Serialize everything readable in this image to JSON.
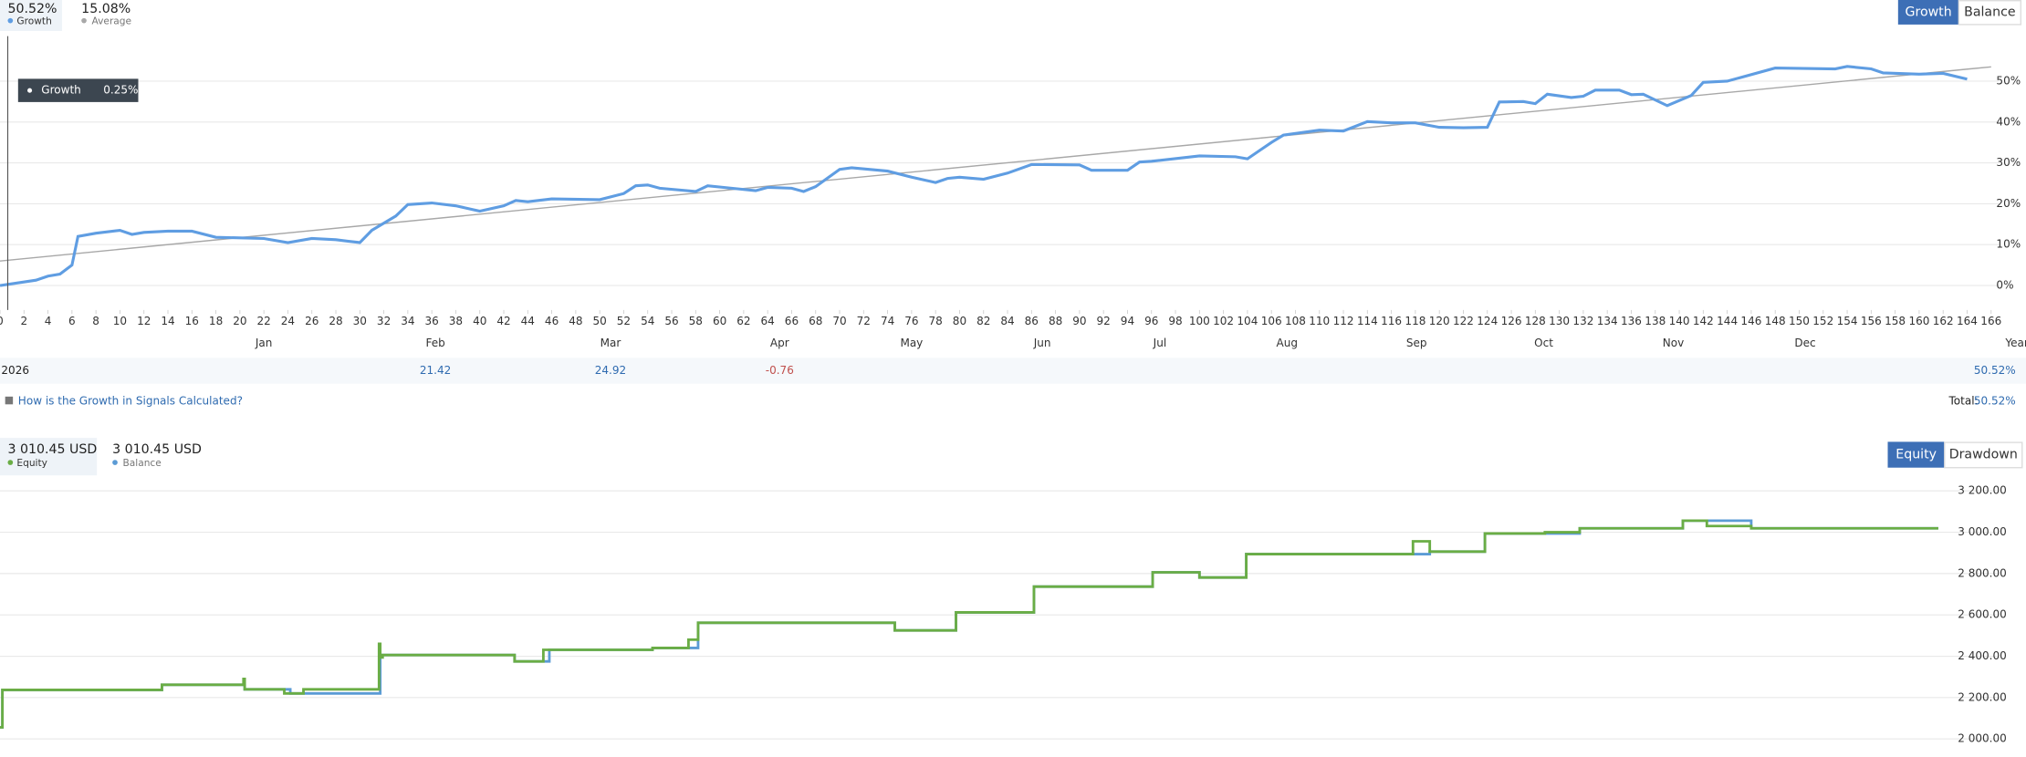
{
  "ui": {
    "growth_value": "50.52%",
    "average_value": "15.08%",
    "buttons": [
      "Growth",
      "Balance"
    ],
    "tooltip": {
      "name": "Growth",
      "value": "0.25%"
    },
    "x_axis_end": "Year",
    "year_row": {
      "year": "2026",
      "values": [
        null,
        21.42,
        24.92,
        -0.76,
        null,
        null,
        null,
        null,
        null,
        null,
        null,
        null
      ],
      "total": "50.52%"
    },
    "link": "How is the Growth in Signals Calculated?",
    "total_label": "Total:",
    "total_value": "50.52%",
    "equity_value": "3 010.45 USD",
    "balance_value": "3 010.45 USD",
    "equity_buttons": [
      "Equity",
      "Drawdown"
    ]
  },
  "chart_data": [
    {
      "type": "line",
      "series": [
        {
          "name": "Growth",
          "color": "#5f9de2",
          "x": [
            0,
            3,
            4,
            5,
            6,
            6.5,
            8,
            10,
            11,
            12,
            14,
            16,
            18,
            22,
            24,
            26,
            28,
            30,
            31,
            33,
            34,
            36,
            38,
            40,
            42,
            43,
            44,
            46,
            50,
            52,
            53,
            54,
            55,
            58,
            59,
            61,
            63,
            64,
            66,
            67,
            68,
            70,
            71,
            74,
            76,
            78,
            79,
            80,
            82,
            84,
            86,
            90,
            91,
            94,
            95,
            96,
            100,
            103,
            104,
            105,
            106,
            107,
            110,
            112,
            114,
            116,
            118,
            120,
            122,
            124,
            125,
            127,
            128,
            129,
            131,
            132,
            133,
            135,
            136,
            137,
            139,
            141,
            142,
            144,
            148,
            153,
            154,
            156,
            157,
            160,
            162,
            164
          ],
          "values": [
            0,
            1.3,
            2.3,
            2.8,
            5,
            12,
            12.8,
            13.5,
            12.5,
            13,
            13.3,
            13.3,
            11.8,
            11.5,
            10.5,
            11.5,
            11.2,
            10.5,
            13.5,
            17,
            19.8,
            20.2,
            19.5,
            18.2,
            19.5,
            20.8,
            20.5,
            21.2,
            21,
            22.5,
            24.4,
            24.6,
            23.8,
            23,
            24.4,
            23.8,
            23.2,
            24,
            23.8,
            23,
            24.2,
            28.4,
            28.8,
            28,
            26.5,
            25.2,
            26.2,
            26.5,
            26,
            27.5,
            29.6,
            29.5,
            28.2,
            28.2,
            30.2,
            30.4,
            31.7,
            31.5,
            31,
            33,
            35,
            36.8,
            38,
            37.8,
            40.1,
            39.8,
            39.8,
            38.7,
            38.6,
            38.7,
            44.9,
            45,
            44.5,
            46.8,
            46,
            46.3,
            47.8,
            47.8,
            46.7,
            46.8,
            44,
            46.5,
            49.7,
            50,
            53.2,
            53,
            53.6,
            53,
            52,
            51.7,
            51.9,
            50.5
          ]
        },
        {
          "name": "Average",
          "color": "#a8a8a8",
          "x": [
            0,
            166
          ],
          "values": [
            6,
            53.5
          ]
        }
      ],
      "xlim": [
        0,
        166
      ],
      "xticks": [
        0,
        2,
        4,
        6,
        8,
        10,
        12,
        14,
        16,
        18,
        20,
        22,
        24,
        26,
        28,
        30,
        32,
        34,
        36,
        38,
        40,
        42,
        44,
        46,
        48,
        50,
        52,
        54,
        56,
        58,
        60,
        62,
        64,
        66,
        68,
        70,
        72,
        74,
        76,
        78,
        80,
        82,
        84,
        86,
        88,
        90,
        92,
        94,
        96,
        98,
        100,
        102,
        104,
        106,
        108,
        110,
        112,
        114,
        116,
        118,
        120,
        122,
        124,
        126,
        128,
        130,
        132,
        134,
        136,
        138,
        140,
        142,
        144,
        146,
        148,
        150,
        152,
        154,
        156,
        158,
        160,
        162,
        164,
        166
      ],
      "month_ticks": [
        {
          "value": 22,
          "label": "Jan"
        },
        {
          "value": 36.3,
          "label": "Feb"
        },
        {
          "value": 50.9,
          "label": "Mar"
        },
        {
          "value": 65,
          "label": "Apr"
        },
        {
          "value": 76,
          "label": "May"
        },
        {
          "value": 86.9,
          "label": "Jun"
        },
        {
          "value": 96.7,
          "label": "Jul"
        },
        {
          "value": 107.3,
          "label": "Aug"
        },
        {
          "value": 118.1,
          "label": "Sep"
        },
        {
          "value": 128.7,
          "label": "Oct"
        },
        {
          "value": 139.5,
          "label": "Nov"
        },
        {
          "value": 150.5,
          "label": "Dec"
        }
      ],
      "ylim": [
        -6,
        61
      ],
      "yticks": [
        {
          "value": 0,
          "label": "0%"
        },
        {
          "value": 10,
          "label": "10%"
        },
        {
          "value": 20,
          "label": "20%"
        },
        {
          "value": 30,
          "label": "30%"
        },
        {
          "value": 40,
          "label": "40%"
        },
        {
          "value": 50,
          "label": "50%"
        }
      ],
      "grid": true
    },
    {
      "type": "step",
      "series": [
        {
          "name": "Equity",
          "color": "#6aad45",
          "x": [
            0,
            0.2,
            13.5,
            20.3,
            20.4,
            23.7,
            24.2,
            25.3,
            31.6,
            31.7,
            31.9,
            42.9,
            45.3,
            45.8,
            54.4,
            57.4,
            58.2,
            74.4,
            74.6,
            79.7,
            86.2,
            96.1,
            100,
            103.9,
            117.8,
            119.2,
            123.8,
            128.8,
            131.7,
            140.3,
            142.3,
            146,
            161.6
          ],
          "values": [
            2056,
            2237,
            2262,
            2290,
            2240,
            2220,
            2220,
            2240,
            2460,
            2394,
            2406,
            2375,
            2431,
            2431,
            2440,
            2480,
            2562,
            2562,
            2525,
            2612,
            2737,
            2806,
            2781,
            2894,
            2956,
            2906,
            2994,
            3000,
            3019,
            3056,
            3030,
            3019,
            3019
          ]
        },
        {
          "name": "Balance",
          "color": "#5b9bd5",
          "x": [
            0,
            0.2,
            13.5,
            20.4,
            24.2,
            31.7,
            42.9,
            45.8,
            54.4,
            58.2,
            74.6,
            79.7,
            86.2,
            96.1,
            100,
            103.9,
            119.2,
            123.8,
            131.7,
            140.3,
            146,
            161.6
          ],
          "values": [
            2056,
            2237,
            2262,
            2240,
            2220,
            2406,
            2375,
            2431,
            2440,
            2562,
            2525,
            2612,
            2737,
            2806,
            2781,
            2894,
            2906,
            2994,
            3019,
            3056,
            3019,
            3019
          ]
        }
      ],
      "xlim": [
        0,
        166
      ],
      "ylim": [
        1950,
        3250
      ],
      "yticks": [
        {
          "value": 2000,
          "label": "2 000.00"
        },
        {
          "value": 2200,
          "label": "2 200.00"
        },
        {
          "value": 2400,
          "label": "2 400.00"
        },
        {
          "value": 2600,
          "label": "2 600.00"
        },
        {
          "value": 2800,
          "label": "2 800.00"
        },
        {
          "value": 3000,
          "label": "3 000.00"
        },
        {
          "value": 3200,
          "label": "3 200.00"
        }
      ],
      "grid": true
    }
  ]
}
